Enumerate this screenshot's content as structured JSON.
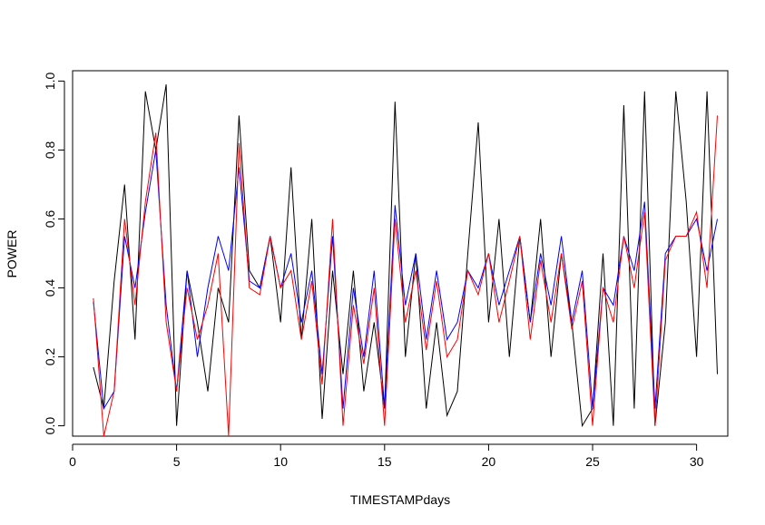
{
  "chart_data": {
    "type": "line",
    "xlabel": "TIMESTAMPdays",
    "ylabel": "POWER",
    "xlim": [
      0,
      31.5
    ],
    "ylim": [
      -0.03,
      1.03
    ],
    "x_ticks": [
      0,
      5,
      10,
      15,
      20,
      25,
      30
    ],
    "y_ticks": [
      "0.0",
      "0.2",
      "0.4",
      "0.6",
      "0.8",
      "1.0"
    ],
    "grid": false,
    "series": [
      {
        "color": "#000000",
        "x": [
          1.0,
          1.5,
          2.0,
          2.5,
          3.0,
          3.5,
          4.0,
          4.5,
          5.0,
          5.5,
          6.0,
          6.5,
          7.0,
          7.5,
          8.0,
          8.5,
          9.0,
          9.5,
          10.0,
          10.5,
          11.0,
          11.5,
          12.0,
          12.5,
          13.0,
          13.5,
          14.0,
          14.5,
          15.0,
          15.5,
          16.0,
          16.5,
          17.0,
          17.5,
          18.0,
          18.5,
          19.0,
          19.5,
          20.0,
          20.5,
          21.0,
          21.5,
          22.0,
          22.5,
          23.0,
          23.5,
          24.0,
          24.5,
          25.0,
          25.5,
          26.0,
          26.5,
          27.0,
          27.5,
          28.0,
          28.5,
          29.0,
          29.5,
          30.0,
          30.5,
          31.0
        ],
        "y": [
          0.17,
          0.05,
          0.42,
          0.7,
          0.25,
          0.97,
          0.8,
          0.99,
          0.0,
          0.45,
          0.3,
          0.1,
          0.4,
          0.3,
          0.9,
          0.45,
          0.4,
          0.55,
          0.3,
          0.75,
          0.25,
          0.6,
          0.02,
          0.45,
          0.15,
          0.45,
          0.1,
          0.3,
          0.05,
          0.94,
          0.2,
          0.5,
          0.05,
          0.3,
          0.03,
          0.1,
          0.5,
          0.88,
          0.3,
          0.6,
          0.2,
          0.55,
          0.3,
          0.6,
          0.2,
          0.5,
          0.3,
          0.0,
          0.05,
          0.5,
          0.0,
          0.93,
          0.05,
          0.97,
          0.0,
          0.3,
          0.97,
          0.65,
          0.2,
          0.97,
          0.15
        ]
      },
      {
        "color": "#0000ff",
        "x": [
          1.0,
          1.5,
          2.0,
          2.5,
          3.0,
          3.5,
          4.0,
          4.5,
          5.0,
          5.5,
          6.0,
          6.5,
          7.0,
          7.5,
          8.0,
          8.5,
          9.0,
          9.5,
          10.0,
          10.5,
          11.0,
          11.5,
          12.0,
          12.5,
          13.0,
          13.5,
          14.0,
          14.5,
          15.0,
          15.5,
          16.0,
          16.5,
          17.0,
          17.5,
          18.0,
          18.5,
          19.0,
          19.5,
          20.0,
          20.5,
          21.0,
          21.5,
          22.0,
          22.5,
          23.0,
          23.5,
          24.0,
          24.5,
          25.0,
          25.5,
          26.0,
          26.5,
          27.0,
          27.5,
          28.0,
          28.5,
          29.0,
          29.5,
          30.0,
          30.5,
          31.0
        ],
        "y": [
          0.36,
          0.05,
          0.1,
          0.55,
          0.4,
          0.62,
          0.8,
          0.35,
          0.1,
          0.45,
          0.2,
          0.4,
          0.55,
          0.45,
          0.75,
          0.42,
          0.4,
          0.55,
          0.4,
          0.5,
          0.3,
          0.45,
          0.15,
          0.55,
          0.05,
          0.4,
          0.2,
          0.45,
          0.05,
          0.64,
          0.35,
          0.5,
          0.25,
          0.45,
          0.25,
          0.3,
          0.45,
          0.4,
          0.5,
          0.35,
          0.45,
          0.55,
          0.3,
          0.5,
          0.35,
          0.55,
          0.3,
          0.45,
          0.05,
          0.4,
          0.35,
          0.55,
          0.45,
          0.65,
          0.05,
          0.5,
          0.55,
          0.55,
          0.6,
          0.45,
          0.6
        ]
      },
      {
        "color": "#ff0000",
        "x": [
          1.0,
          1.5,
          2.0,
          2.5,
          3.0,
          3.5,
          4.0,
          4.5,
          5.0,
          5.5,
          6.0,
          6.5,
          7.0,
          7.5,
          8.0,
          8.5,
          9.0,
          9.5,
          10.0,
          10.5,
          11.0,
          11.5,
          12.0,
          12.5,
          13.0,
          13.5,
          14.0,
          14.5,
          15.0,
          15.5,
          16.0,
          16.5,
          17.0,
          17.5,
          18.0,
          18.5,
          19.0,
          19.5,
          20.0,
          20.5,
          21.0,
          21.5,
          22.0,
          22.5,
          23.0,
          23.5,
          24.0,
          24.5,
          25.0,
          25.5,
          26.0,
          26.5,
          27.0,
          27.5,
          28.0,
          28.5,
          29.0,
          29.5,
          30.0,
          30.5,
          31.0
        ],
        "y": [
          0.37,
          -0.03,
          0.1,
          0.6,
          0.35,
          0.65,
          0.85,
          0.3,
          0.1,
          0.4,
          0.25,
          0.35,
          0.5,
          -0.03,
          0.82,
          0.4,
          0.38,
          0.55,
          0.4,
          0.45,
          0.25,
          0.42,
          0.12,
          0.6,
          0.0,
          0.35,
          0.18,
          0.4,
          0.0,
          0.6,
          0.3,
          0.45,
          0.22,
          0.42,
          0.2,
          0.25,
          0.45,
          0.38,
          0.5,
          0.3,
          0.42,
          0.55,
          0.25,
          0.48,
          0.3,
          0.5,
          0.28,
          0.42,
          0.0,
          0.4,
          0.3,
          0.55,
          0.4,
          0.62,
          0.0,
          0.48,
          0.55,
          0.55,
          0.62,
          0.4,
          0.9
        ]
      }
    ]
  }
}
